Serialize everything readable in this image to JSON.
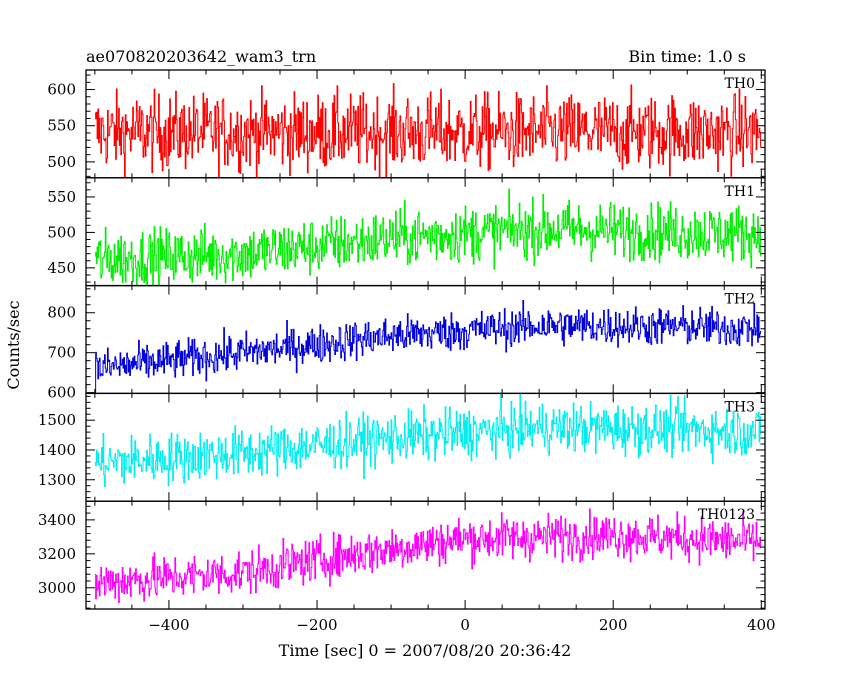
{
  "header": {
    "title": "ae070820203642_wam3_trn",
    "bin_time": "Bin time: 1.0 s"
  },
  "chart_data": {
    "type": "line",
    "xlabel": "Time [sec] 0 = 2007/08/20 20:36:42",
    "ylabel": "Counts/sec",
    "xlim": [
      -512,
      405
    ],
    "x_ticks": [
      -400,
      -200,
      0,
      200,
      400
    ],
    "x_tick_labels": [
      "−400",
      "−200",
      "0",
      "200",
      "400"
    ],
    "x_start": -500,
    "x_end": 399,
    "step": 1.0,
    "panels": [
      {
        "name": "TH0",
        "color": "#ff0000",
        "ylim": [
          478,
          627
        ],
        "y_ticks": [
          500,
          550,
          600
        ],
        "trend": [
          [
            -500,
            541
          ],
          [
            400,
            541
          ]
        ],
        "noise": 26
      },
      {
        "name": "TH1",
        "color": "#00ee00",
        "ylim": [
          425,
          577
        ],
        "y_ticks": [
          450,
          500,
          550
        ],
        "trend": [
          [
            -500,
            462
          ],
          [
            -300,
            470
          ],
          [
            -100,
            492
          ],
          [
            100,
            505
          ],
          [
            400,
            498
          ]
        ],
        "noise": 20
      },
      {
        "name": "TH2",
        "color": "#0000dd",
        "ylim": [
          598,
          868
        ],
        "y_ticks": [
          600,
          700,
          800
        ],
        "trend": [
          [
            -500,
            660
          ],
          [
            -300,
            700
          ],
          [
            -100,
            742
          ],
          [
            100,
            768
          ],
          [
            300,
            765
          ],
          [
            400,
            760
          ]
        ],
        "noise": 24
      },
      {
        "name": "TH3",
        "color": "#00eeee",
        "ylim": [
          1228,
          1590
        ],
        "y_ticks": [
          1300,
          1400,
          1500
        ],
        "trend": [
          [
            -500,
            1355
          ],
          [
            -300,
            1390
          ],
          [
            -100,
            1440
          ],
          [
            100,
            1475
          ],
          [
            300,
            1470
          ],
          [
            400,
            1460
          ]
        ],
        "noise": 42
      },
      {
        "name": "TH0123",
        "color": "#ff00ff",
        "ylim": [
          2875,
          3510
        ],
        "y_ticks": [
          3000,
          3200,
          3400
        ],
        "trend": [
          [
            -500,
            3030
          ],
          [
            -300,
            3090
          ],
          [
            -150,
            3200
          ],
          [
            0,
            3290
          ],
          [
            200,
            3310
          ],
          [
            400,
            3270
          ]
        ],
        "noise": 65
      }
    ]
  }
}
